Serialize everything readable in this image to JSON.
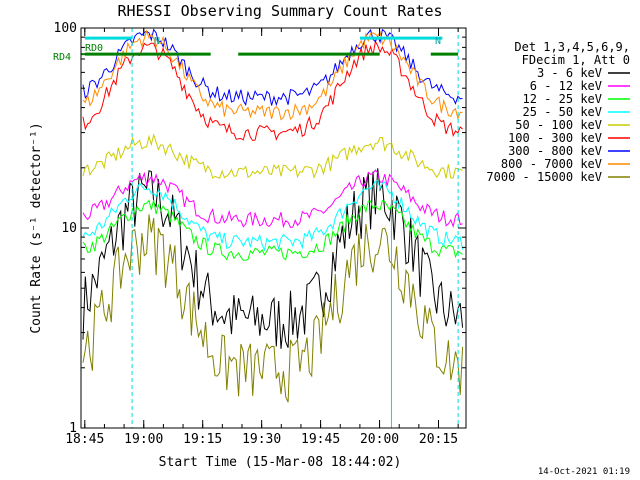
{
  "chart_data": {
    "type": "line",
    "title": "RHESSI Observing Summary Count Rates",
    "xlabel": "Start Time (15-Mar-08 18:44:02)",
    "ylabel": "Count Rate (s⁻¹ detector⁻¹)",
    "yscale": "log",
    "ylim": [
      1,
      100
    ],
    "xlim": [
      "18:44:02",
      "20:22:00"
    ],
    "x_ticks": [
      "18:45",
      "19:00",
      "19:15",
      "19:30",
      "19:45",
      "20:00",
      "20:15"
    ],
    "y_ticks": [
      "1",
      "10",
      "100"
    ],
    "legend_header": [
      "Det 1,3,4,5,6,9,",
      "FDecim 1, Att 0"
    ],
    "legend_placement": "right",
    "footer": "14-Oct-2021 01:19",
    "annotations": {
      "rd0": "RD0",
      "rd4": "RD4",
      "n1": "N",
      "n2": "N"
    },
    "peaks_minutes": [
      17,
      75
    ],
    "series": [
      {
        "name": "3 - 6 keV",
        "color": "#000000",
        "peak": 15,
        "base": 3.5
      },
      {
        "name": "6 - 12 keV",
        "color": "#ff00ff",
        "peak": 18,
        "base": 11
      },
      {
        "name": "12 - 25 keV",
        "color": "#00ff00",
        "peak": 13,
        "base": 7.5
      },
      {
        "name": "25 - 50 keV",
        "color": "#00ffff",
        "peak": 16,
        "base": 8.5
      },
      {
        "name": "50 - 100 keV",
        "color": "#cccc00",
        "peak": 27,
        "base": 19
      },
      {
        "name": "100 - 300 keV",
        "color": "#ff0000",
        "peak": 80,
        "base": 30
      },
      {
        "name": "300 - 800 keV",
        "color": "#0000ff",
        "peak": 93,
        "base": 45
      },
      {
        "name": "800 - 7000 keV",
        "color": "#ff8c00",
        "peak": 90,
        "base": 38
      },
      {
        "name": "7000 - 15000 keV",
        "color": "#808000",
        "peak": 9,
        "base": 2
      }
    ]
  }
}
